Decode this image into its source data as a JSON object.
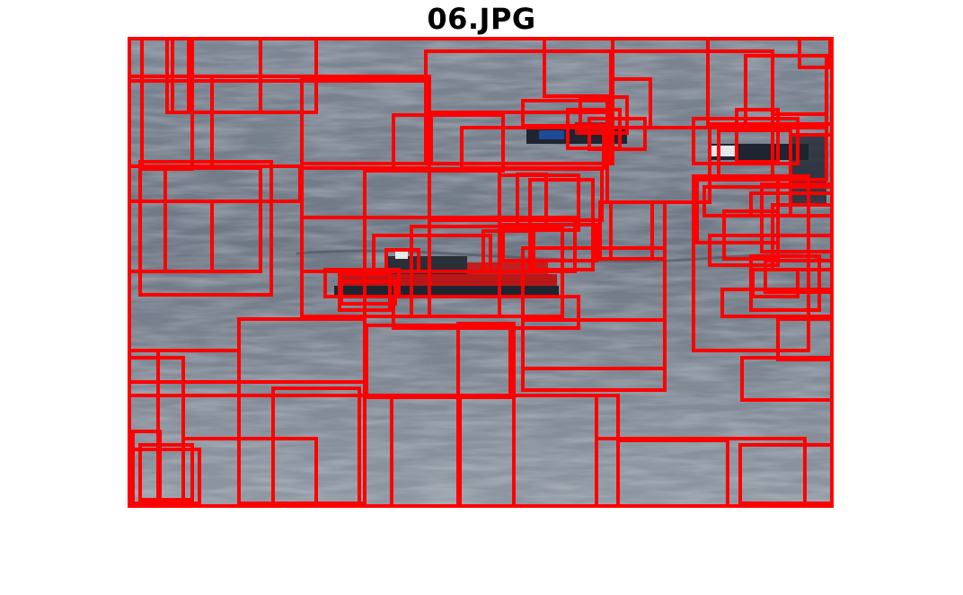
{
  "figure": {
    "title": "06.JPG"
  },
  "colors": {
    "background": "#ffffff",
    "box_stroke": "#ff0000",
    "water_dark": "#5f6875",
    "water_light": "#8d95a0",
    "boat_red": "#b81818",
    "boat_dark": "#1f2530",
    "boat_blue": "#1e4a9a",
    "boat_white": "#e6e9ec"
  },
  "image_content": {
    "description_icon": "photo-water-boats",
    "boats": [
      "large-red-boat",
      "small-boat-top-center",
      "boats-right-edge"
    ]
  }
}
